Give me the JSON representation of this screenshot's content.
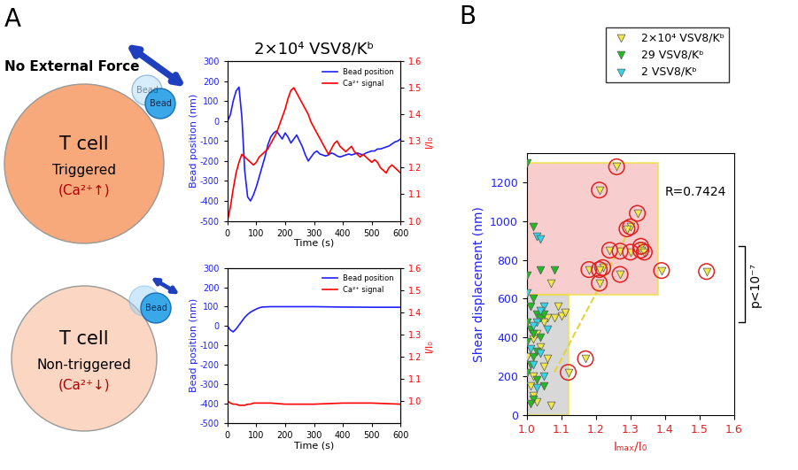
{
  "panel_labels": [
    "A",
    "B"
  ],
  "diagram": {
    "heading": "No External Force",
    "cells": [
      {
        "name": "T cell",
        "state": "Triggered",
        "calcium": "(Ca²⁺↑)",
        "beads": [
          "Bead",
          "Bead"
        ]
      },
      {
        "name": "T cell",
        "state": "Non-triggered",
        "calcium": "(Ca²⁺↓)",
        "beads": [
          "Bead"
        ]
      }
    ]
  },
  "chart_data": [
    {
      "type": "line",
      "title": "2×10⁴ VSV8/Kᵇ",
      "x_label": "Time (s)",
      "y_label": "Bead position (nm)",
      "y2_label": "I/I₀",
      "xlim": [
        0,
        600
      ],
      "xticks": [
        0,
        100,
        200,
        300,
        400,
        500,
        600
      ],
      "ylim": [
        -500,
        300
      ],
      "yticks": [
        -500,
        -400,
        -300,
        -200,
        -100,
        0,
        100,
        200,
        300
      ],
      "y2lim": [
        1.0,
        1.6
      ],
      "y2ticks": [
        {
          "value": 1.0,
          "label": "1.0"
        },
        1.1,
        1.2,
        1.3,
        1.4,
        1.5,
        1.6
      ],
      "legend": "upper right",
      "x": [
        0,
        10,
        20,
        30,
        40,
        50,
        60,
        70,
        80,
        90,
        100,
        110,
        120,
        130,
        140,
        150,
        160,
        170,
        180,
        190,
        200,
        210,
        220,
        230,
        240,
        250,
        260,
        270,
        280,
        290,
        300,
        310,
        320,
        330,
        340,
        350,
        360,
        370,
        380,
        390,
        400,
        410,
        420,
        430,
        440,
        450,
        460,
        470,
        480,
        490,
        500,
        510,
        520,
        530,
        540,
        550,
        560,
        570,
        580,
        590,
        600
      ],
      "series": [
        {
          "name": "Bead position",
          "color": "#2020ff",
          "values": [
            0,
            30,
            100,
            150,
            170,
            20,
            -250,
            -380,
            -400,
            -370,
            -330,
            -280,
            -230,
            -180,
            -120,
            -80,
            -60,
            -50,
            -70,
            -90,
            -60,
            -80,
            -110,
            -90,
            -70,
            -100,
            -130,
            -170,
            -200,
            -180,
            -160,
            -150,
            -165,
            -170,
            -175,
            -170,
            -160,
            -165,
            -175,
            -180,
            -175,
            -170,
            -165,
            -170,
            -165,
            -160,
            -165,
            -170,
            -160,
            -155,
            -150,
            -150,
            -140,
            -140,
            -135,
            -130,
            -125,
            -115,
            -105,
            -100,
            -90
          ]
        },
        {
          "name": "Ca²⁺ signal",
          "color": "#ff0000",
          "axis": "y2",
          "values": [
            1.0,
            1.05,
            1.12,
            1.18,
            1.22,
            1.25,
            1.24,
            1.23,
            1.22,
            1.21,
            1.22,
            1.24,
            1.25,
            1.26,
            1.27,
            1.29,
            1.31,
            1.33,
            1.36,
            1.39,
            1.42,
            1.46,
            1.49,
            1.5,
            1.48,
            1.46,
            1.44,
            1.42,
            1.4,
            1.37,
            1.35,
            1.33,
            1.31,
            1.29,
            1.27,
            1.25,
            1.27,
            1.29,
            1.3,
            1.28,
            1.27,
            1.26,
            1.27,
            1.28,
            1.26,
            1.25,
            1.24,
            1.25,
            1.24,
            1.23,
            1.22,
            1.23,
            1.22,
            1.2,
            1.19,
            1.18,
            1.2,
            1.21,
            1.2,
            1.19,
            1.18
          ]
        }
      ]
    },
    {
      "type": "line",
      "x_label": "Time (s)",
      "y_label": "Bead position (nm)",
      "y2_label": "I/I₀",
      "xlim": [
        0,
        600
      ],
      "xticks": [
        0,
        100,
        200,
        300,
        400,
        500,
        600
      ],
      "ylim": [
        -500,
        300
      ],
      "yticks": [
        -500,
        -400,
        -300,
        -200,
        -100,
        0,
        100,
        200,
        300
      ],
      "y2lim": [
        0.9,
        1.6
      ],
      "y2ticks": [
        {
          "value": 1.0,
          "label": "1.0"
        },
        1.1,
        1.2,
        1.3,
        1.4,
        1.5,
        1.6
      ],
      "legend": "upper right",
      "x": [
        0,
        10,
        20,
        30,
        40,
        50,
        60,
        70,
        80,
        90,
        100,
        110,
        120,
        150,
        200,
        300,
        400,
        500,
        600
      ],
      "series": [
        {
          "name": "Bead position",
          "color": "#2020ff",
          "values": [
            0,
            -20,
            -30,
            -15,
            5,
            25,
            45,
            60,
            72,
            80,
            88,
            94,
            98,
            100,
            100,
            100,
            98,
            97,
            97
          ]
        },
        {
          "name": "Ca²⁺ signal",
          "color": "#ff0000",
          "axis": "y2",
          "values": [
            1.0,
            0.99,
            0.985,
            0.985,
            0.98,
            0.98,
            0.98,
            0.985,
            0.985,
            0.99,
            0.99,
            0.99,
            0.99,
            0.99,
            0.985,
            0.985,
            0.99,
            0.99,
            0.985
          ]
        }
      ]
    },
    {
      "type": "scatter",
      "x_label": "Iₘₐₓ/I₀",
      "y_label": "Shear displacement (nm)",
      "xlim": [
        1.0,
        1.6
      ],
      "xticks": [
        {
          "value": 1.0,
          "label": "1.0"
        },
        1.1,
        1.2,
        1.3,
        1.4,
        1.5,
        1.6
      ],
      "ylim": [
        0,
        1350
      ],
      "yticks": [
        0,
        200,
        400,
        600,
        800,
        1000,
        1200
      ],
      "legend": "upper right",
      "shaded_regions": [
        {
          "x": [
            1.0,
            1.38
          ],
          "y": [
            620,
            1300
          ],
          "color": "#f6b8b8"
        },
        {
          "x": [
            1.0,
            1.12
          ],
          "y": [
            0,
            620
          ],
          "color": "#c8c8c8"
        }
      ],
      "fit_line": {
        "x": [
          1.08,
          1.31
        ],
        "y": [
          220,
          1000
        ],
        "color": "#e6d23a",
        "line_style": "dashed"
      },
      "annotation": {
        "text": "R=0.7424",
        "x": 1.4,
        "y": 1150
      },
      "bracket": {
        "y": [
          480,
          870
        ],
        "label": "p<10⁻⁷"
      },
      "series": [
        {
          "name": "2×10⁴ VSV8/Kᵇ",
          "color": "#f2e84a",
          "marker": "v",
          "x": [
            1.26,
            1.21,
            1.32,
            1.3,
            1.29,
            1.33,
            1.33,
            1.34,
            1.24,
            1.27,
            1.3,
            1.22,
            1.18,
            1.21,
            1.27,
            1.21,
            1.39,
            1.52,
            1.17,
            1.12,
            1.09,
            1.1,
            1.11,
            1.08,
            1.07,
            1.06,
            1.05,
            1.03,
            1.02,
            1.04,
            1.06,
            1.05,
            1.02,
            1.01,
            1.02,
            1.03,
            1.07,
            1.0
          ],
          "values": [
            1280,
            1160,
            1040,
            970,
            960,
            870,
            850,
            840,
            850,
            845,
            840,
            760,
            750,
            750,
            725,
            680,
            745,
            740,
            290,
            220,
            560,
            510,
            530,
            500,
            680,
            500,
            480,
            420,
            390,
            350,
            290,
            250,
            200,
            150,
            100,
            70,
            50,
            300
          ],
          "circled": [
            true,
            true,
            true,
            true,
            true,
            true,
            true,
            true,
            true,
            true,
            true,
            true,
            true,
            true,
            true,
            true,
            true,
            true,
            true,
            true,
            false,
            false,
            false,
            false,
            false,
            false,
            false,
            false,
            false,
            false,
            false,
            false,
            false,
            false,
            false,
            false,
            false,
            false
          ]
        },
        {
          "name": "29 VSV8/Kᵇ",
          "color": "#22bb22",
          "marker": "v",
          "x": [
            1.0,
            1.02,
            1.0,
            1.04,
            1.08,
            1.02,
            1.01,
            1.03,
            1.04,
            1.0,
            1.01,
            1.02,
            1.0,
            1.03,
            1.02,
            1.01,
            1.0,
            1.03,
            1.05,
            1.02,
            1.01,
            1.04,
            1.05
          ],
          "values": [
            1300,
            970,
            720,
            750,
            750,
            600,
            560,
            520,
            500,
            480,
            440,
            420,
            380,
            330,
            300,
            260,
            220,
            180,
            150,
            80,
            60,
            400,
            520
          ]
        },
        {
          "name": "2 VSV8/Kᵇ",
          "color": "#33d6e8",
          "marker": "v",
          "x": [
            1.03,
            1.04,
            1.0,
            1.05,
            1.04,
            1.03,
            1.02,
            1.06,
            1.01,
            1.04,
            1.02,
            1.05,
            1.03
          ],
          "values": [
            920,
            910,
            630,
            560,
            540,
            480,
            460,
            440,
            340,
            320,
            260,
            200,
            140
          ]
        }
      ]
    }
  ]
}
